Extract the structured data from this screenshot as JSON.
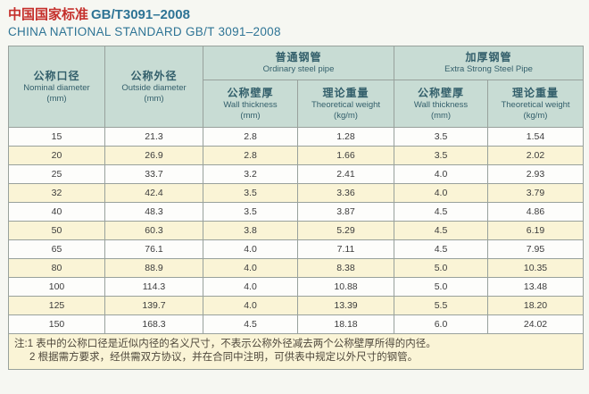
{
  "title": {
    "line1_zh": "中国国家标准",
    "line1_code": "GB/T3091–2008",
    "line2": "CHINA NATIONAL STANDARD GB/T 3091–2008"
  },
  "colors": {
    "title_red": "#c5302c",
    "title_teal": "#2e7495",
    "header_bg": "#c8dcd4",
    "header_text": "#335f6b",
    "row_alt_bg": "#faf4d6",
    "row_bg": "#fdfdfb",
    "notes_bg": "#faf4d6",
    "grid_border": "#98a19c",
    "page_bg": "#f6f7f2"
  },
  "table": {
    "header": {
      "nominal": {
        "zh": "公称口径",
        "en": "Nominal diameter",
        "unit": "(mm)"
      },
      "outside": {
        "zh": "公称外径",
        "en": "Outside diameter",
        "unit": "(mm)"
      },
      "group_ordinary": {
        "zh": "普通钢管",
        "en": "Ordinary steel pipe"
      },
      "group_extra": {
        "zh": "加厚钢管",
        "en": "Extra Strong Steel Pipe"
      },
      "wall": {
        "zh": "公称壁厚",
        "en": "Wall thickness",
        "unit": "(mm)"
      },
      "weight": {
        "zh": "理论重量",
        "en": "Theoretical weight",
        "unit": "(kg/m)"
      }
    },
    "rows": [
      [
        "15",
        "21.3",
        "2.8",
        "1.28",
        "3.5",
        "1.54"
      ],
      [
        "20",
        "26.9",
        "2.8",
        "1.66",
        "3.5",
        "2.02"
      ],
      [
        "25",
        "33.7",
        "3.2",
        "2.41",
        "4.0",
        "2.93"
      ],
      [
        "32",
        "42.4",
        "3.5",
        "3.36",
        "4.0",
        "3.79"
      ],
      [
        "40",
        "48.3",
        "3.5",
        "3.87",
        "4.5",
        "4.86"
      ],
      [
        "50",
        "60.3",
        "3.8",
        "5.29",
        "4.5",
        "6.19"
      ],
      [
        "65",
        "76.1",
        "4.0",
        "7.11",
        "4.5",
        "7.95"
      ],
      [
        "80",
        "88.9",
        "4.0",
        "8.38",
        "5.0",
        "10.35"
      ],
      [
        "100",
        "114.3",
        "4.0",
        "10.88",
        "5.0",
        "13.48"
      ],
      [
        "125",
        "139.7",
        "4.0",
        "13.39",
        "5.5",
        "18.20"
      ],
      [
        "150",
        "168.3",
        "4.5",
        "18.18",
        "6.0",
        "24.02"
      ]
    ],
    "notes": {
      "line1": "注:1 表中的公称口径是近似内径的名义尺寸，不表示公称外径减去两个公称壁厚所得的内径。",
      "line2": "2 根据需方要求，经供需双方协议，并在合同中注明，可供表中规定以外尺寸的钢管。"
    }
  }
}
